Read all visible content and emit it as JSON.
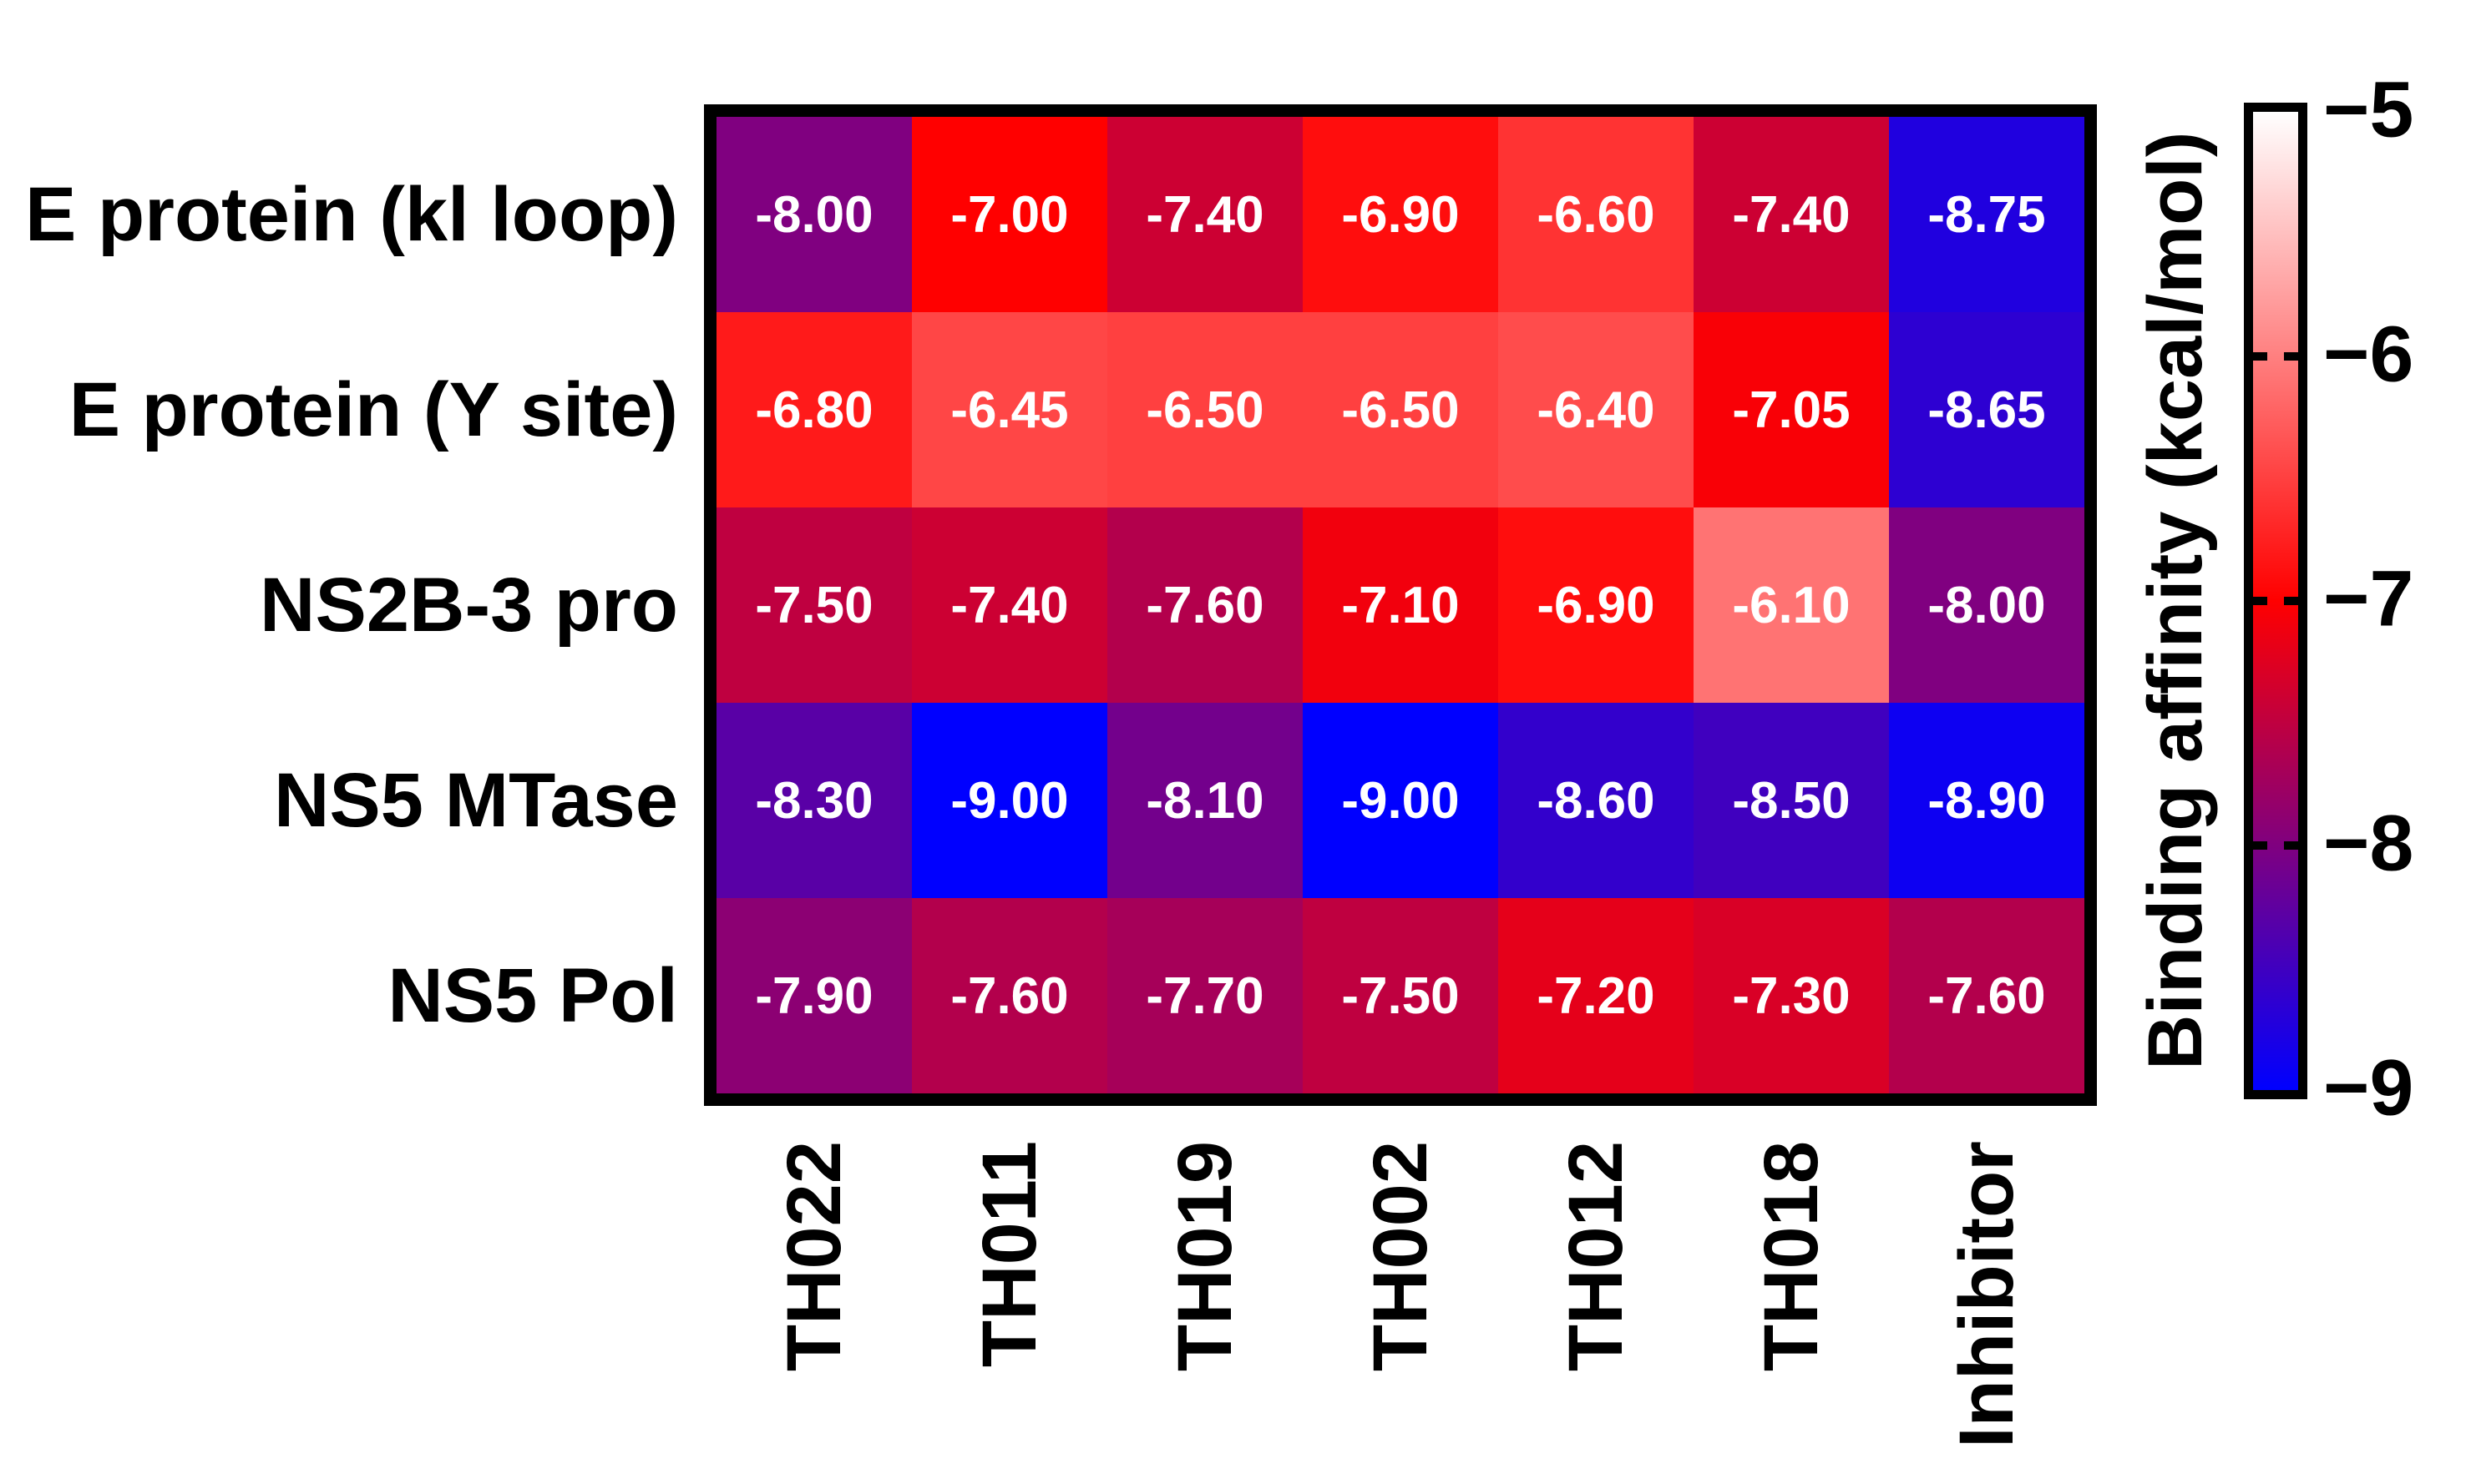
{
  "chart_data": {
    "type": "heatmap",
    "title": "",
    "rows": [
      "E protein (kl loop)",
      "E protein (Y site)",
      "NS2B-3 pro",
      "NS5 MTase",
      "NS5 Pol"
    ],
    "columns": [
      "TH022",
      "TH011",
      "TH019",
      "TH002",
      "TH012",
      "TH018",
      "Inhibitor"
    ],
    "values": [
      [
        -8.0,
        -7.0,
        -7.4,
        -6.9,
        -6.6,
        -7.4,
        -8.75
      ],
      [
        -6.8,
        -6.45,
        -6.5,
        -6.5,
        -6.4,
        -7.05,
        -8.65
      ],
      [
        -7.5,
        -7.4,
        -7.6,
        -7.1,
        -6.9,
        -6.1,
        -8.0
      ],
      [
        -8.3,
        -9.0,
        -8.1,
        -9.0,
        -8.6,
        -8.5,
        -8.9
      ],
      [
        -7.9,
        -7.6,
        -7.7,
        -7.5,
        -7.2,
        -7.3,
        -7.6
      ]
    ],
    "value_decimals": 2,
    "cell_text_color": "#ffffff",
    "grid_border_color": "#000000",
    "colorbar": {
      "label": "Binding affinity (kcal/mol)",
      "vmax": -5,
      "vmin": -9,
      "mid_value": -7,
      "ticks": [
        -5,
        -6,
        -7,
        -8,
        -9
      ],
      "tick_labels": [
        "−5",
        "−6",
        "−7",
        "−8",
        "−9"
      ],
      "color_max": "#ffffff",
      "color_mid": "#ff0000",
      "color_min": "#0000ff"
    },
    "legend_position": "right",
    "grid": false
  }
}
